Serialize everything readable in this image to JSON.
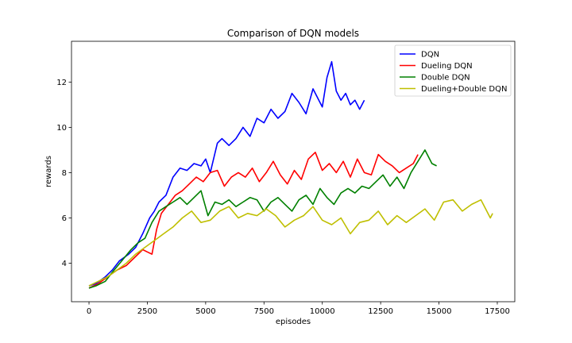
{
  "chart_data": {
    "type": "line",
    "title": "Comparison of DQN models",
    "xlabel": "episodes",
    "ylabel": "rewards",
    "xlim": [
      -750,
      18250
    ],
    "ylim": [
      2.3,
      13.8
    ],
    "xticks": [
      0,
      2500,
      5000,
      7500,
      10000,
      12500,
      15000,
      17500
    ],
    "xtick_labels": [
      "0",
      "2500",
      "5000",
      "7500",
      "10000",
      "12500",
      "15000",
      "17500"
    ],
    "yticks": [
      4,
      6,
      8,
      10,
      12
    ],
    "ytick_labels": [
      "4",
      "6",
      "8",
      "10",
      "12"
    ],
    "grid": false,
    "legend_position": "top-right",
    "series": [
      {
        "name": "DQN",
        "color": "#0000ff",
        "x": [
          0,
          300,
          700,
          1000,
          1300,
          1700,
          2000,
          2300,
          2600,
          2800,
          3000,
          3300,
          3600,
          3900,
          4200,
          4500,
          4800,
          5000,
          5200,
          5500,
          5700,
          6000,
          6300,
          6600,
          6900,
          7200,
          7500,
          7800,
          8100,
          8400,
          8700,
          9000,
          9300,
          9600,
          9800,
          10000,
          10200,
          10400,
          10600,
          10800,
          11000,
          11200,
          11400,
          11600,
          11800
        ],
        "y": [
          3.0,
          3.1,
          3.4,
          3.7,
          4.1,
          4.4,
          4.7,
          5.3,
          6.0,
          6.3,
          6.7,
          7.0,
          7.8,
          8.2,
          8.1,
          8.4,
          8.3,
          8.6,
          8.0,
          9.3,
          9.5,
          9.2,
          9.5,
          10.0,
          9.6,
          10.4,
          10.2,
          10.8,
          10.4,
          10.7,
          11.5,
          11.1,
          10.6,
          11.7,
          11.3,
          10.9,
          12.2,
          12.9,
          11.6,
          11.2,
          11.5,
          11.0,
          11.2,
          10.8,
          11.2
        ]
      },
      {
        "name": "Dueling DQN",
        "color": "#ff0000",
        "x": [
          0,
          400,
          800,
          1200,
          1600,
          2000,
          2300,
          2500,
          2700,
          2900,
          3100,
          3400,
          3700,
          4000,
          4300,
          4600,
          4900,
          5200,
          5500,
          5800,
          6100,
          6400,
          6700,
          7000,
          7300,
          7600,
          7900,
          8200,
          8500,
          8800,
          9100,
          9400,
          9700,
          10000,
          10300,
          10600,
          10900,
          11200,
          11500,
          11800,
          12100,
          12400,
          12700,
          13000,
          13300,
          13600,
          13900,
          14100
        ],
        "y": [
          2.9,
          3.1,
          3.4,
          3.7,
          3.9,
          4.3,
          4.6,
          4.5,
          4.4,
          5.5,
          6.2,
          6.6,
          7.0,
          7.2,
          7.5,
          7.8,
          7.6,
          8.0,
          8.1,
          7.4,
          7.8,
          8.0,
          7.8,
          8.2,
          7.6,
          8.0,
          8.5,
          7.9,
          7.5,
          8.1,
          7.7,
          8.6,
          8.9,
          8.1,
          8.4,
          8.0,
          8.5,
          7.8,
          8.6,
          8.0,
          7.9,
          8.8,
          8.5,
          8.3,
          8.0,
          8.2,
          8.4,
          8.8
        ]
      },
      {
        "name": "Double DQN",
        "color": "#008000",
        "x": [
          0,
          300,
          700,
          1000,
          1400,
          1800,
          2100,
          2400,
          2700,
          3000,
          3300,
          3600,
          3900,
          4200,
          4500,
          4800,
          5100,
          5400,
          5700,
          6000,
          6300,
          6600,
          6900,
          7200,
          7500,
          7800,
          8100,
          8400,
          8700,
          9000,
          9300,
          9600,
          9900,
          10200,
          10500,
          10800,
          11100,
          11400,
          11700,
          12000,
          12300,
          12600,
          12900,
          13200,
          13500,
          13800,
          14100,
          14400,
          14700,
          14900
        ],
        "y": [
          2.9,
          3.0,
          3.2,
          3.6,
          4.1,
          4.6,
          4.9,
          5.1,
          5.8,
          6.3,
          6.5,
          6.7,
          6.9,
          6.6,
          6.9,
          7.2,
          6.1,
          6.7,
          6.6,
          6.8,
          6.5,
          6.7,
          6.9,
          6.8,
          6.3,
          6.7,
          6.9,
          6.6,
          6.3,
          6.8,
          7.0,
          6.6,
          7.3,
          6.9,
          6.6,
          7.1,
          7.3,
          7.1,
          7.4,
          7.3,
          7.6,
          7.9,
          7.4,
          7.8,
          7.3,
          8.0,
          8.5,
          9.0,
          8.4,
          8.3
        ]
      },
      {
        "name": "Dueling+Double DQN",
        "color": "#bfbf00",
        "x": [
          0,
          400,
          800,
          1200,
          1600,
          2000,
          2400,
          2800,
          3200,
          3600,
          4000,
          4400,
          4800,
          5200,
          5600,
          6000,
          6400,
          6800,
          7200,
          7600,
          8000,
          8400,
          8800,
          9200,
          9600,
          10000,
          10400,
          10800,
          11200,
          11600,
          12000,
          12400,
          12800,
          13200,
          13600,
          14000,
          14400,
          14800,
          15200,
          15600,
          16000,
          16400,
          16800,
          17200,
          17300
        ],
        "y": [
          3.0,
          3.2,
          3.4,
          3.7,
          4.0,
          4.4,
          4.7,
          5.0,
          5.3,
          5.6,
          6.0,
          6.3,
          5.8,
          5.9,
          6.3,
          6.5,
          6.0,
          6.2,
          6.1,
          6.4,
          6.1,
          5.6,
          5.9,
          6.1,
          6.5,
          5.9,
          5.7,
          6.0,
          5.3,
          5.8,
          5.9,
          6.3,
          5.7,
          6.1,
          5.8,
          6.1,
          6.4,
          5.9,
          6.7,
          6.8,
          6.3,
          6.6,
          6.8,
          6.0,
          6.2
        ]
      }
    ]
  }
}
